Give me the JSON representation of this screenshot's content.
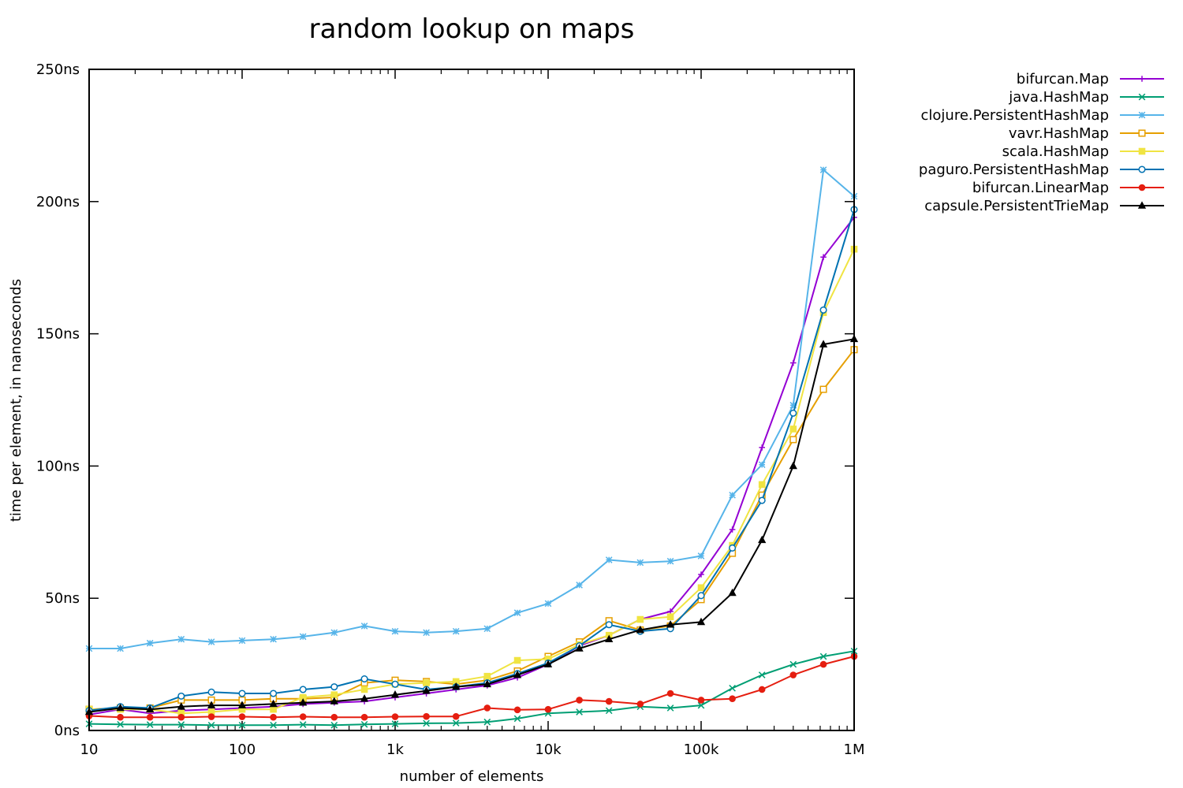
{
  "chart_data": {
    "type": "line",
    "title": "random lookup on maps",
    "xlabel": "number of elements",
    "ylabel": "time per element, in nanoseconds",
    "x_scale": "log",
    "xlim": [
      10,
      1000000
    ],
    "ylim": [
      0,
      250
    ],
    "x_ticks": [
      {
        "value": 10,
        "label": "10"
      },
      {
        "value": 100,
        "label": "100"
      },
      {
        "value": 1000,
        "label": "1k"
      },
      {
        "value": 10000,
        "label": "10k"
      },
      {
        "value": 100000,
        "label": "100k"
      },
      {
        "value": 1000000,
        "label": "1M"
      }
    ],
    "y_ticks": [
      {
        "value": 0,
        "label": "0ns"
      },
      {
        "value": 50,
        "label": "50ns"
      },
      {
        "value": 100,
        "label": "100ns"
      },
      {
        "value": 150,
        "label": "150ns"
      },
      {
        "value": 200,
        "label": "200ns"
      },
      {
        "value": 250,
        "label": "250ns"
      }
    ],
    "grid": false,
    "legend_position": "top-right, outside plot",
    "x": [
      10,
      16,
      25,
      40,
      63,
      100,
      160,
      250,
      400,
      630,
      1000,
      1600,
      2500,
      4000,
      6300,
      10000,
      16000,
      25000,
      40000,
      63000,
      100000,
      160000,
      250000,
      400000,
      630000,
      1000000
    ],
    "series": [
      {
        "name": "bifurcan.Map",
        "color": "#9400d3",
        "marker": "plus",
        "values": [
          6,
          8,
          6.5,
          7.5,
          8,
          8.5,
          9,
          10,
          10.5,
          11,
          12.5,
          14,
          15.5,
          17,
          20,
          25,
          32,
          36,
          42,
          45,
          59,
          76,
          107,
          139,
          179,
          194
        ]
      },
      {
        "name": "java.HashMap",
        "color": "#009e73",
        "marker": "cross",
        "values": [
          2.5,
          2.3,
          2.2,
          2.2,
          2,
          2,
          2,
          2.2,
          2,
          2.3,
          2.5,
          2.7,
          2.8,
          3.2,
          4.5,
          6.5,
          7,
          7.5,
          9,
          8.5,
          9.5,
          16,
          21,
          25,
          28,
          30
        ]
      },
      {
        "name": "clojure.PersistentHashMap",
        "color": "#56b4e9",
        "marker": "star",
        "values": [
          31,
          31,
          33,
          34.5,
          33.5,
          34,
          34.5,
          35.5,
          37,
          39.5,
          37.5,
          37,
          37.5,
          38.5,
          44.5,
          48,
          55,
          64.5,
          63.5,
          64,
          66,
          89,
          100.5,
          123,
          212,
          202
        ]
      },
      {
        "name": "vavr.HashMap",
        "color": "#e69f00",
        "marker": "square-open",
        "values": [
          8,
          8.5,
          8.5,
          11.5,
          11.5,
          11.5,
          12,
          12,
          12.5,
          18,
          19,
          18.5,
          17.5,
          19,
          22.5,
          28,
          33.5,
          41.5,
          38,
          39.5,
          49.5,
          67,
          89,
          110,
          129,
          144
        ]
      },
      {
        "name": "scala.HashMap",
        "color": "#f0e442",
        "marker": "square",
        "values": [
          8,
          8,
          8,
          6.5,
          7,
          8,
          8,
          12.5,
          13.5,
          15.5,
          17.5,
          18,
          18.5,
          20.5,
          26.5,
          27,
          32.5,
          36,
          42,
          43,
          54,
          70,
          93,
          114,
          158,
          182
        ]
      },
      {
        "name": "paguro.PersistentHashMap",
        "color": "#0072b2",
        "marker": "circle-open",
        "values": [
          7.5,
          9,
          8.5,
          13,
          14.5,
          14,
          14,
          15.5,
          16.5,
          19.5,
          17.5,
          15.5,
          16.5,
          18,
          21.5,
          25.5,
          32,
          40,
          37.5,
          38.5,
          51,
          69,
          87,
          120,
          159,
          197
        ]
      },
      {
        "name": "bifurcan.LinearMap",
        "color": "#e51e10",
        "marker": "circle",
        "values": [
          5.5,
          5,
          5,
          5,
          5.2,
          5.2,
          5,
          5.2,
          5,
          5,
          5.2,
          5.3,
          5.3,
          8.5,
          7.8,
          8,
          11.5,
          11,
          10,
          14,
          11.5,
          12,
          15.5,
          21,
          25,
          28
        ]
      },
      {
        "name": "capsule.PersistentTrieMap",
        "color": "#000000",
        "marker": "triangle",
        "values": [
          7,
          8.5,
          8,
          9,
          9.5,
          9.5,
          10,
          10.5,
          11,
          12,
          13.5,
          15,
          16.5,
          17.5,
          21,
          25,
          31,
          34.5,
          38,
          40,
          41,
          52,
          72,
          100,
          146,
          148
        ]
      }
    ]
  }
}
